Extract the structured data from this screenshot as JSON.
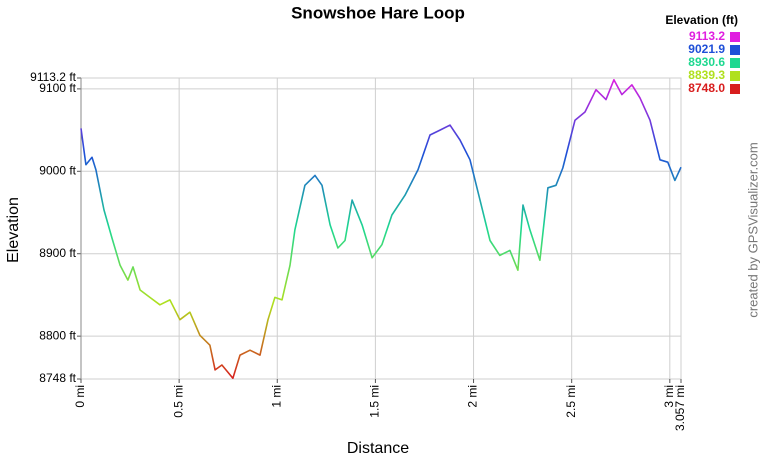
{
  "chart_data": {
    "type": "line",
    "title": "Snowshoe Hare Loop",
    "x_label": "Distance",
    "y_label": "Elevation",
    "credit": "created by GPSVisualizer.com",
    "legend_title": "Elevation (ft)",
    "legend": [
      {
        "value": 9113.2,
        "color": "#e01ee0"
      },
      {
        "value": 9021.9,
        "color": "#1e4fd8"
      },
      {
        "value": 8930.6,
        "color": "#1ed890"
      },
      {
        "value": 8839.3,
        "color": "#b0e01e"
      },
      {
        "value": 8748,
        "label": "8748.0",
        "color": "#d81e1e"
      }
    ],
    "grid": true,
    "xlim": [
      0,
      3.057
    ],
    "ylim": [
      8748,
      9113.2
    ],
    "xticks": [
      {
        "value": 0,
        "label": "0 mi"
      },
      {
        "value": 0.5,
        "label": "0.5 mi"
      },
      {
        "value": 1,
        "label": "1 mi"
      },
      {
        "value": 1.5,
        "label": "1.5 mi"
      },
      {
        "value": 2,
        "label": "2 mi"
      },
      {
        "value": 2.5,
        "label": "2.5 mi"
      },
      {
        "value": 3,
        "label": "3 mi"
      },
      {
        "value": 3.057,
        "label": "3.057 mi"
      }
    ],
    "yticks": [
      {
        "value": 8748,
        "label": "8748 ft"
      },
      {
        "value": 8800,
        "label": "8800 ft"
      },
      {
        "value": 8900,
        "label": "8900 ft"
      },
      {
        "value": 9000,
        "label": "9000 ft"
      },
      {
        "value": 9100,
        "label": "9100 ft"
      },
      {
        "value": 9113.2,
        "label": "9113.2 ft"
      }
    ],
    "x": [
      0,
      0.025,
      0.056,
      0.076,
      0.117,
      0.158,
      0.199,
      0.239,
      0.265,
      0.301,
      0.351,
      0.402,
      0.453,
      0.504,
      0.555,
      0.606,
      0.657,
      0.683,
      0.718,
      0.774,
      0.81,
      0.861,
      0.912,
      0.953,
      0.988,
      1.024,
      1.065,
      1.09,
      1.141,
      1.192,
      1.228,
      1.269,
      1.309,
      1.345,
      1.381,
      1.432,
      1.483,
      1.533,
      1.584,
      1.651,
      1.717,
      1.778,
      1.829,
      1.88,
      1.931,
      1.982,
      2.033,
      2.084,
      2.134,
      2.185,
      2.226,
      2.252,
      2.287,
      2.338,
      2.379,
      2.42,
      2.455,
      2.517,
      2.568,
      2.624,
      2.675,
      2.715,
      2.756,
      2.807,
      2.848,
      2.899,
      2.95,
      2.99,
      3.026,
      3.057
    ],
    "values": [
      9052,
      9008,
      9017,
      9002,
      8953,
      8919,
      8886,
      8868,
      8884,
      8856,
      8847,
      8838,
      8844,
      8820,
      8829,
      8801,
      8789,
      8759,
      8765,
      8749,
      8777,
      8783,
      8777,
      8820,
      8847,
      8844,
      8886,
      8929,
      8983,
      8995,
      8983,
      8935,
      8907,
      8916,
      8965,
      8935,
      8895,
      8911,
      8947,
      8971,
      9002,
      9044,
      9050,
      9056,
      9038,
      9014,
      8965,
      8916,
      8898,
      8904,
      8880,
      8959,
      8929,
      8892,
      8980,
      8983,
      9004,
      9062,
      9072,
      9099,
      9087,
      9111,
      9093,
      9105,
      9089,
      9062,
      9014,
      9011,
      8989,
      9005
    ]
  }
}
